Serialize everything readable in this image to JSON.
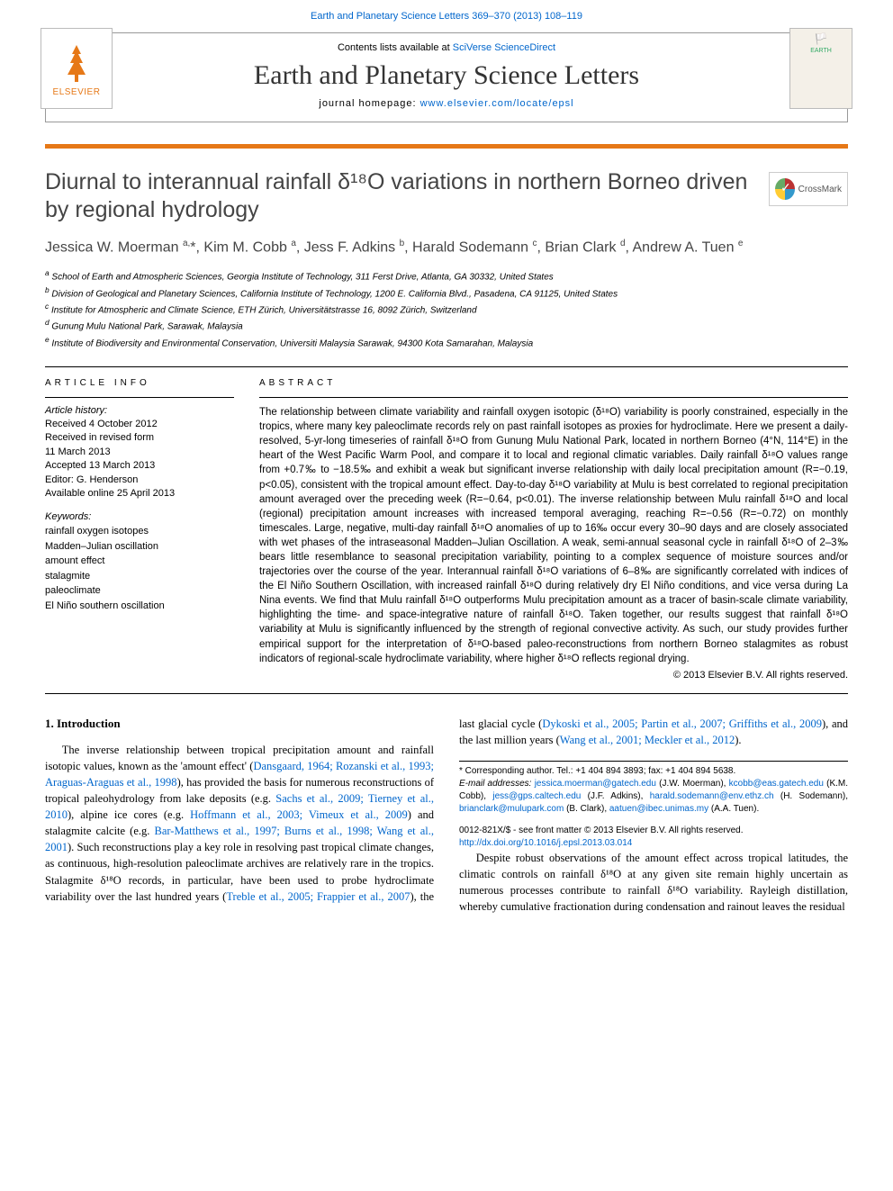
{
  "topLink": "Earth and Planetary Science Letters 369–370 (2013) 108–119",
  "header": {
    "contentsLine_pre": "Contents lists available at ",
    "contentsLine_link": "SciVerse ScienceDirect",
    "journalTitle": "Earth and Planetary Science Letters",
    "homepage_pre": "journal homepage: ",
    "homepage_link": "www.elsevier.com/locate/epsl",
    "elsevierText": "ELSEVIER",
    "coverTitle": "EARTH"
  },
  "crossmark": "CrossMark",
  "title": "Diurnal to interannual rainfall δ¹⁸O variations in northern Borneo driven by regional hydrology",
  "authors_html": "Jessica W. Moerman <sup>a,</sup>*, Kim M. Cobb <sup>a</sup>, Jess F. Adkins <sup>b</sup>, Harald Sodemann <sup>c</sup>, Brian Clark <sup>d</sup>, Andrew A. Tuen <sup>e</sup>",
  "affiliations": [
    "a School of Earth and Atmospheric Sciences, Georgia Institute of Technology, 311 Ferst Drive, Atlanta, GA 30332, United States",
    "b Division of Geological and Planetary Sciences, California Institute of Technology, 1200 E. California Blvd., Pasadena, CA 91125, United States",
    "c Institute for Atmospheric and Climate Science, ETH Zürich, Universitätstrasse 16, 8092 Zürich, Switzerland",
    "d Gunung Mulu National Park, Sarawak, Malaysia",
    "e Institute of Biodiversity and Environmental Conservation, Universiti Malaysia Sarawak, 94300 Kota Samarahan, Malaysia"
  ],
  "articleInfo": {
    "heading": "ARTICLE INFO",
    "historyLabel": "Article history:",
    "history": "Received 4 October 2012\nReceived in revised form\n11 March 2013\nAccepted 13 March 2013\nEditor: G. Henderson\nAvailable online 25 April 2013",
    "keywordsLabel": "Keywords:",
    "keywords": "rainfall oxygen isotopes\nMadden–Julian oscillation\namount effect\nstalagmite\npaleoclimate\nEl Niño southern oscillation"
  },
  "abstract": {
    "heading": "ABSTRACT",
    "text": "The relationship between climate variability and rainfall oxygen isotopic (δ¹⁸O) variability is poorly constrained, especially in the tropics, where many key paleoclimate records rely on past rainfall isotopes as proxies for hydroclimate. Here we present a daily-resolved, 5-yr-long timeseries of rainfall δ¹⁸O from Gunung Mulu National Park, located in northern Borneo (4°N, 114°E) in the heart of the West Pacific Warm Pool, and compare it to local and regional climatic variables. Daily rainfall δ¹⁸O values range from +0.7‰ to −18.5‰ and exhibit a weak but significant inverse relationship with daily local precipitation amount (R=−0.19, p<0.05), consistent with the tropical amount effect. Day-to-day δ¹⁸O variability at Mulu is best correlated to regional precipitation amount averaged over the preceding week (R=−0.64, p<0.01). The inverse relationship between Mulu rainfall δ¹⁸O and local (regional) precipitation amount increases with increased temporal averaging, reaching R=−0.56 (R=−0.72) on monthly timescales. Large, negative, multi-day rainfall δ¹⁸O anomalies of up to 16‰ occur every 30–90 days and are closely associated with wet phases of the intraseasonal Madden–Julian Oscillation. A weak, semi-annual seasonal cycle in rainfall δ¹⁸O of 2–3‰ bears little resemblance to seasonal precipitation variability, pointing to a complex sequence of moisture sources and/or trajectories over the course of the year. Interannual rainfall δ¹⁸O variations of 6–8‰ are significantly correlated with indices of the El Niño Southern Oscillation, with increased rainfall δ¹⁸O during relatively dry El Niño conditions, and vice versa during La Nina events. We find that Mulu rainfall δ¹⁸O outperforms Mulu precipitation amount as a tracer of basin-scale climate variability, highlighting the time- and space-integrative nature of rainfall δ¹⁸O. Taken together, our results suggest that rainfall δ¹⁸O variability at Mulu is significantly influenced by the strength of regional convective activity. As such, our study provides further empirical support for the interpretation of δ¹⁸O-based paleo-reconstructions from northern Borneo stalagmites as robust indicators of regional-scale hydroclimate variability, where higher δ¹⁸O reflects regional drying.",
    "copyright": "© 2013 Elsevier B.V. All rights reserved."
  },
  "intro": {
    "heading": "1. Introduction",
    "p1_a": "The inverse relationship between tropical precipitation amount and rainfall isotopic values, known as the 'amount effect' (",
    "p1_link1": "Dansgaard, 1964; Rozanski et al., 1993; Araguas-Araguas et al., 1998",
    "p1_b": "), has provided the basis for numerous reconstructions of tropical paleohydrology from lake deposits (e.g. ",
    "p1_link2": "Sachs et al., 2009; Tierney et al., 2010",
    "p1_c": "), alpine ice cores (e.g. ",
    "p1_link3": "Hoffmann et al., 2003;",
    "p1_d": " ",
    "p1_link4": "Vimeux et al., 2009",
    "p1_e": ") and stalagmite calcite (e.g. ",
    "p1_link5": "Bar-Matthews et al., 1997; Burns et al., 1998; Wang et al., 2001",
    "p1_f": "). Such reconstructions play a key role in resolving past tropical climate changes, as continuous, high-resolution paleoclimate archives are relatively rare in the tropics. Stalagmite δ¹⁸O records, in particular, have been used to probe hydroclimate variability over the last hundred years (",
    "p1_link6": "Treble et al., 2005; Frappier et al., 2007",
    "p1_g": "), the last glacial cycle (",
    "p1_link7": "Dykoski et al., 2005; Partin et al., 2007; Griffiths et al., 2009",
    "p1_h": "), and the last million years (",
    "p1_link8": "Wang et al., 2001; Meckler et al., 2012",
    "p1_i": ").",
    "p2": "Despite robust observations of the amount effect across tropical latitudes, the climatic controls on rainfall δ¹⁸O at any given site remain highly uncertain as numerous processes contribute to rainfall δ¹⁸O variability. Rayleigh distillation, whereby cumulative fractionation during condensation and rainout leaves the residual"
  },
  "footnotes": {
    "corresponding": "* Corresponding author. Tel.: +1 404 894 3893; fax: +1 404 894 5638.",
    "emailsLabel": "E-mail addresses:",
    "emails": " jessica.moerman@gatech.edu (J.W. Moerman), kcobb@eas.gatech.edu (K.M. Cobb), jess@gps.caltech.edu (J.F. Adkins), harald.sodemann@env.ethz.ch (H. Sodemann), brianclark@mulupark.com (B. Clark), aatuen@ibec.unimas.my (A.A. Tuen)."
  },
  "doi": {
    "line1": "0012-821X/$ - see front matter © 2013 Elsevier B.V. All rights reserved.",
    "line2": "http://dx.doi.org/10.1016/j.epsl.2013.03.014"
  },
  "colors": {
    "link": "#0066cc",
    "orange": "#e67817",
    "text": "#000000"
  }
}
